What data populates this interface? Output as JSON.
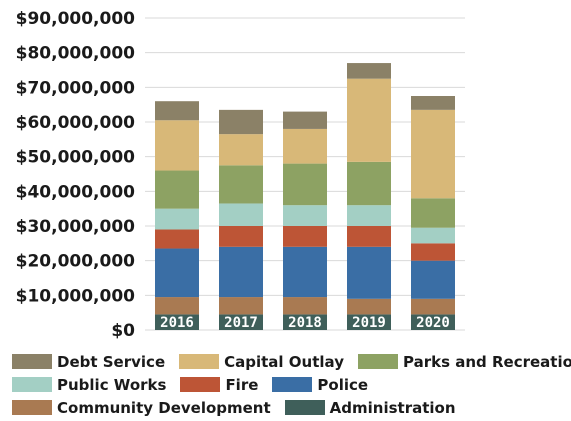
{
  "chart_data": {
    "type": "bar",
    "stacked": true,
    "title": "",
    "xlabel": "",
    "ylabel": "",
    "categories": [
      "2016",
      "2017",
      "2018",
      "2019",
      "2020"
    ],
    "ylim": [
      0,
      90000000
    ],
    "yticks": [
      0,
      10000000,
      20000000,
      30000000,
      40000000,
      50000000,
      60000000,
      70000000,
      80000000,
      90000000
    ],
    "ytick_labels": [
      "$0",
      "$10,000,000",
      "$20,000,000",
      "$30,000,000",
      "$40,000,000",
      "$50,000,000",
      "$60,000,000",
      "$70,000,000",
      "$80,000,000",
      "$90,000,000"
    ],
    "grid": true,
    "legend_position": "bottom",
    "series": [
      {
        "name": "Administration",
        "color": "#3f5f5a",
        "values": [
          4500000,
          4500000,
          4500000,
          4500000,
          4500000
        ]
      },
      {
        "name": "Community Development",
        "color": "#a97a52",
        "values": [
          5000000,
          5000000,
          5000000,
          4500000,
          4500000
        ]
      },
      {
        "name": "Police",
        "color": "#3a6ea5",
        "values": [
          14000000,
          14500000,
          14500000,
          15000000,
          11000000
        ]
      },
      {
        "name": "Fire",
        "color": "#bd5536",
        "values": [
          5500000,
          6000000,
          6000000,
          6000000,
          5000000
        ]
      },
      {
        "name": "Public Works",
        "color": "#a3cfc4",
        "values": [
          6000000,
          6500000,
          6000000,
          6000000,
          4500000
        ]
      },
      {
        "name": "Parks and Recreation",
        "color": "#8da263",
        "values": [
          11000000,
          11000000,
          12000000,
          12500000,
          8500000
        ]
      },
      {
        "name": "Capital Outlay",
        "color": "#d8b878",
        "values": [
          14500000,
          9000000,
          10000000,
          24000000,
          25500000
        ]
      },
      {
        "name": "Debt Service",
        "color": "#8b8167",
        "values": [
          5500000,
          7000000,
          5000000,
          4500000,
          4000000
        ]
      }
    ]
  },
  "legend": {
    "rows": [
      [
        "Debt Service",
        "Capital Outlay",
        "Parks and Recreation"
      ],
      [
        "Public Works",
        "Fire",
        "Police"
      ],
      [
        "Community Development",
        "Administration"
      ]
    ]
  }
}
